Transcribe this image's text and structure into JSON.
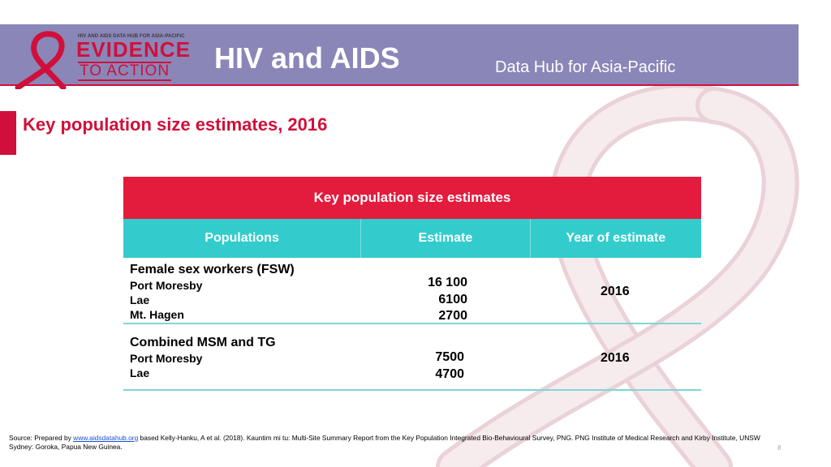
{
  "header": {
    "logo_tagline": "HIV AND AIDS DATA HUB FOR ASIA-PACIFIC",
    "logo_line1": "EVIDENCE",
    "logo_line2": "TO ACTION",
    "title": "HIV and AIDS",
    "subtitle": "Data Hub for Asia-Pacific"
  },
  "slide_title": "Key population size estimates, 2016",
  "table": {
    "caption": "Key population size estimates",
    "columns": [
      "Populations",
      "Estimate",
      "Year of estimate"
    ],
    "groups": [
      {
        "name": "Female sex workers (FSW)",
        "locations": [
          "Port Moresby",
          "Lae",
          "Mt. Hagen"
        ],
        "estimates": [
          "16 100",
          "6100",
          "2700"
        ],
        "year": "2016"
      },
      {
        "name": "Combined MSM and TG",
        "locations": [
          "Port Moresby",
          "Lae"
        ],
        "estimates": [
          "7500",
          "4700"
        ],
        "year": "2016"
      }
    ]
  },
  "source": {
    "prefix": "Source: Prepared by ",
    "link": "www.aidsdatahub.org",
    "suffix": "  based Kelly-Hanku, A et al. (2018). Kauntim mi tu: Multi-Site Summary Report from the Key Population Integrated Bio-Behavioural Survey, PNG. PNG Institute of Medical Research and Kirby Institute, UNSW Sydney: Goroka, Papua New Guinea."
  },
  "page_number": "8",
  "colors": {
    "header_bg": "#8a86b8",
    "accent_red": "#e31b3d",
    "teal": "#33cccc",
    "ribbon_pink": "#ead2d8"
  }
}
